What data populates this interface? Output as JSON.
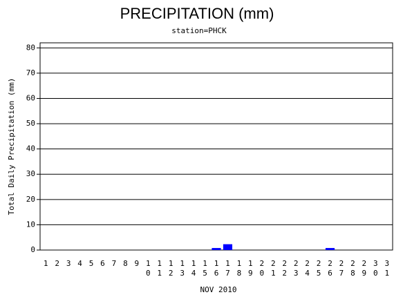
{
  "chart_data": {
    "type": "bar",
    "title": "PRECIPITATION (mm)",
    "subtitle": "station=PHCK",
    "x_label": "NOV 2010",
    "y_label": "Total Daily Precipitation (mm)",
    "categories": [
      "1",
      "2",
      "3",
      "4",
      "5",
      "6",
      "7",
      "8",
      "9",
      "10",
      "11",
      "12",
      "13",
      "14",
      "15",
      "16",
      "17",
      "18",
      "19",
      "20",
      "21",
      "22",
      "23",
      "24",
      "25",
      "26",
      "27",
      "28",
      "29",
      "30",
      "31"
    ],
    "values": [
      0,
      0,
      0,
      0,
      0,
      0,
      0,
      0,
      0,
      0,
      0,
      0,
      0,
      0,
      0,
      0.8,
      2.3,
      0,
      0,
      0,
      0,
      0,
      0,
      0,
      0,
      0.8,
      0,
      0,
      0,
      0,
      0
    ],
    "color": "#0000ff",
    "ylim": [
      0,
      82
    ],
    "yticks": [
      0,
      10,
      20,
      30,
      40,
      50,
      60,
      70,
      80
    ],
    "grid": true
  }
}
